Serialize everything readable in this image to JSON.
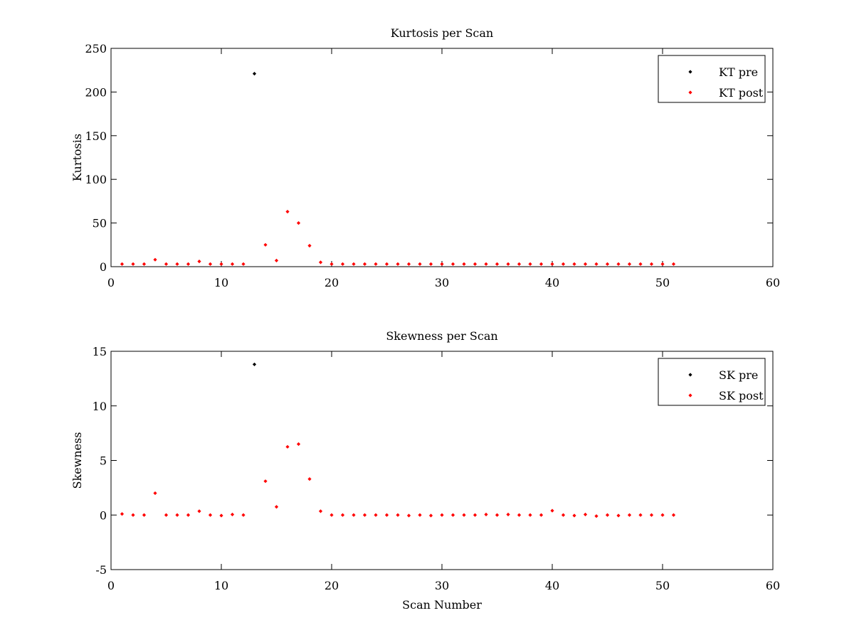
{
  "chart_data": [
    {
      "type": "scatter",
      "title": "Kurtosis per Scan",
      "xlabel": "",
      "ylabel": "Kurtosis",
      "xlim": [
        0,
        60
      ],
      "ylim": [
        0,
        250
      ],
      "xticks": [
        0,
        10,
        20,
        30,
        40,
        50,
        60
      ],
      "yticks": [
        0,
        50,
        100,
        150,
        200,
        250
      ],
      "grid": false,
      "legend": "top-right",
      "series": [
        {
          "name": "KT pre",
          "color": "#000000",
          "x": [
            13
          ],
          "y": [
            221
          ]
        },
        {
          "name": "KT post",
          "color": "#ff0000",
          "x": [
            1,
            2,
            3,
            4,
            5,
            6,
            7,
            8,
            9,
            10,
            11,
            12,
            14,
            15,
            16,
            17,
            18,
            19,
            20,
            21,
            22,
            23,
            24,
            25,
            26,
            27,
            28,
            29,
            30,
            31,
            32,
            33,
            34,
            35,
            36,
            37,
            38,
            39,
            40,
            41,
            42,
            43,
            44,
            45,
            46,
            47,
            48,
            49,
            50,
            51
          ],
          "y": [
            3,
            3,
            3,
            8,
            3,
            3,
            3,
            6,
            3,
            3,
            3,
            3,
            25,
            7,
            63,
            50,
            24,
            5,
            3,
            3,
            3,
            3,
            3,
            3,
            3,
            3,
            3,
            3,
            3,
            3,
            3,
            3,
            3,
            3,
            3,
            3,
            3,
            3,
            3,
            3,
            3,
            3,
            3,
            3,
            3,
            3,
            3,
            3,
            3,
            3
          ]
        }
      ]
    },
    {
      "type": "scatter",
      "title": "Skewness per Scan",
      "xlabel": "Scan Number",
      "ylabel": "Skewness",
      "xlim": [
        0,
        60
      ],
      "ylim": [
        -5,
        15
      ],
      "xticks": [
        0,
        10,
        20,
        30,
        40,
        50,
        60
      ],
      "yticks": [
        -5,
        0,
        5,
        10,
        15
      ],
      "grid": false,
      "legend": "top-right",
      "series": [
        {
          "name": "SK pre",
          "color": "#000000",
          "x": [
            13
          ],
          "y": [
            13.8
          ]
        },
        {
          "name": "SK post",
          "color": "#ff0000",
          "x": [
            1,
            2,
            3,
            4,
            5,
            6,
            7,
            8,
            9,
            10,
            11,
            12,
            14,
            15,
            16,
            17,
            18,
            19,
            20,
            21,
            22,
            23,
            24,
            25,
            26,
            27,
            28,
            29,
            30,
            31,
            32,
            33,
            34,
            35,
            36,
            37,
            38,
            39,
            40,
            41,
            42,
            43,
            44,
            45,
            46,
            47,
            48,
            49,
            50,
            51
          ],
          "y": [
            0.1,
            0,
            0,
            2,
            0,
            0,
            0,
            0.35,
            0,
            -0.05,
            0.05,
            0,
            3.1,
            0.75,
            6.25,
            6.5,
            3.3,
            0.35,
            0,
            0,
            0,
            0,
            0,
            0,
            0,
            -0.05,
            0,
            -0.05,
            0,
            0,
            0,
            0,
            0.05,
            0,
            0.05,
            0,
            0,
            0,
            0.4,
            0,
            -0.05,
            0.05,
            -0.1,
            0,
            -0.05,
            0,
            0,
            0,
            0,
            0
          ]
        }
      ]
    }
  ]
}
